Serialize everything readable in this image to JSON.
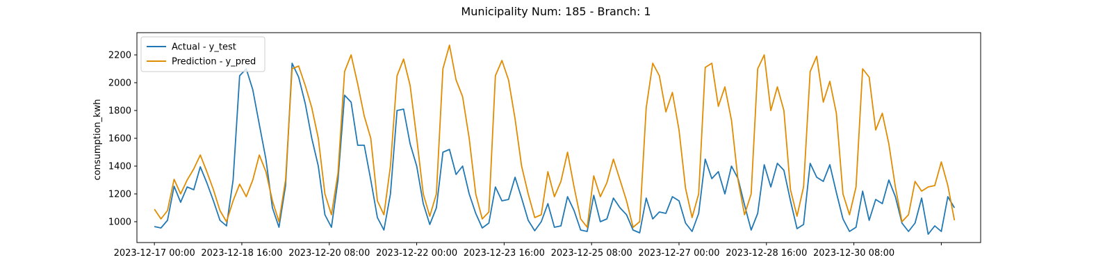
{
  "chart_data": {
    "type": "line",
    "title": "Municipality Num: 185 - Branch: 1",
    "xlabel": "",
    "ylabel": "consumption_kwh",
    "x_range": [
      "2023-12-17 00:00",
      "2024-01-01 06:00"
    ],
    "ylim": [
      850,
      2360
    ],
    "yticks": [
      1000,
      1200,
      1400,
      1600,
      1800,
      2000,
      2200
    ],
    "xticks": [
      {
        "label": "2023-12-17 00:00",
        "value": "2023-12-17 00:00"
      },
      {
        "label": "2023-12-18 16:00",
        "value": "2023-12-18 16:00"
      },
      {
        "label": "2023-12-20 08:00",
        "value": "2023-12-20 08:00"
      },
      {
        "label": "2023-12-22 00:00",
        "value": "2023-12-22 00:00"
      },
      {
        "label": "2023-12-23 16:00",
        "value": "2023-12-23 16:00"
      },
      {
        "label": "2023-12-25 08:00",
        "value": "2023-12-25 08:00"
      },
      {
        "label": "2023-12-27 00:00",
        "value": "2023-12-27 00:00"
      },
      {
        "label": "2023-12-28 16:00",
        "value": "2023-12-28 16:00"
      },
      {
        "label": "2023-12-30 08:00",
        "value": "2023-12-30 08:00"
      },
      {
        "label": "",
        "value": "2024-01-01 00:00"
      }
    ],
    "grid": false,
    "legend_position": "upper left",
    "series": [
      {
        "name": "Actual - y_test",
        "color": "#1f77b4",
        "points": [
          [
            "2023-12-17 00:00",
            965
          ],
          [
            "2023-12-17 03:00",
            955
          ],
          [
            "2023-12-17 06:00",
            1010
          ],
          [
            "2023-12-17 09:00",
            1255
          ],
          [
            "2023-12-17 12:00",
            1140
          ],
          [
            "2023-12-17 15:00",
            1250
          ],
          [
            "2023-12-17 18:00",
            1230
          ],
          [
            "2023-12-17 21:00",
            1395
          ],
          [
            "2023-12-18 00:00",
            1280
          ],
          [
            "2023-12-18 03:00",
            1150
          ],
          [
            "2023-12-18 06:00",
            1010
          ],
          [
            "2023-12-18 09:00",
            970
          ],
          [
            "2023-12-18 12:00",
            1300
          ],
          [
            "2023-12-18 15:00",
            2050
          ],
          [
            "2023-12-18 18:00",
            2100
          ],
          [
            "2023-12-18 21:00",
            1950
          ],
          [
            "2023-12-19 00:00",
            1700
          ],
          [
            "2023-12-19 03:00",
            1450
          ],
          [
            "2023-12-19 06:00",
            1100
          ],
          [
            "2023-12-19 09:00",
            960
          ],
          [
            "2023-12-19 12:00",
            1260
          ],
          [
            "2023-12-19 15:00",
            2140
          ],
          [
            "2023-12-19 18:00",
            2040
          ],
          [
            "2023-12-19 21:00",
            1850
          ],
          [
            "2023-12-20 00:00",
            1600
          ],
          [
            "2023-12-20 03:00",
            1400
          ],
          [
            "2023-12-20 06:00",
            1050
          ],
          [
            "2023-12-20 09:00",
            960
          ],
          [
            "2023-12-20 12:00",
            1300
          ],
          [
            "2023-12-20 15:00",
            1910
          ],
          [
            "2023-12-20 18:00",
            1860
          ],
          [
            "2023-12-20 21:00",
            1550
          ],
          [
            "2023-12-21 00:00",
            1550
          ],
          [
            "2023-12-21 03:00",
            1300
          ],
          [
            "2023-12-21 06:00",
            1030
          ],
          [
            "2023-12-21 09:00",
            940
          ],
          [
            "2023-12-21 12:00",
            1200
          ],
          [
            "2023-12-21 15:00",
            1800
          ],
          [
            "2023-12-21 18:00",
            1810
          ],
          [
            "2023-12-21 21:00",
            1560
          ],
          [
            "2023-12-22 00:00",
            1400
          ],
          [
            "2023-12-22 03:00",
            1130
          ],
          [
            "2023-12-22 06:00",
            980
          ],
          [
            "2023-12-22 09:00",
            1100
          ],
          [
            "2023-12-22 12:00",
            1500
          ],
          [
            "2023-12-22 15:00",
            1520
          ],
          [
            "2023-12-22 18:00",
            1340
          ],
          [
            "2023-12-22 21:00",
            1400
          ],
          [
            "2023-12-23 00:00",
            1200
          ],
          [
            "2023-12-23 03:00",
            1060
          ],
          [
            "2023-12-23 06:00",
            955
          ],
          [
            "2023-12-23 09:00",
            990
          ],
          [
            "2023-12-23 12:00",
            1250
          ],
          [
            "2023-12-23 15:00",
            1150
          ],
          [
            "2023-12-23 18:00",
            1160
          ],
          [
            "2023-12-23 21:00",
            1320
          ],
          [
            "2023-12-24 00:00",
            1170
          ],
          [
            "2023-12-24 03:00",
            1010
          ],
          [
            "2023-12-24 06:00",
            935
          ],
          [
            "2023-12-24 09:00",
            1000
          ],
          [
            "2023-12-24 12:00",
            1130
          ],
          [
            "2023-12-24 15:00",
            960
          ],
          [
            "2023-12-24 18:00",
            970
          ],
          [
            "2023-12-24 21:00",
            1180
          ],
          [
            "2023-12-25 00:00",
            1080
          ],
          [
            "2023-12-25 03:00",
            940
          ],
          [
            "2023-12-25 06:00",
            930
          ],
          [
            "2023-12-25 09:00",
            1190
          ],
          [
            "2023-12-25 12:00",
            1000
          ],
          [
            "2023-12-25 15:00",
            1020
          ],
          [
            "2023-12-25 18:00",
            1170
          ],
          [
            "2023-12-25 21:00",
            1100
          ],
          [
            "2023-12-26 00:00",
            1050
          ],
          [
            "2023-12-26 03:00",
            940
          ],
          [
            "2023-12-26 06:00",
            920
          ],
          [
            "2023-12-26 09:00",
            1170
          ],
          [
            "2023-12-26 12:00",
            1020
          ],
          [
            "2023-12-26 15:00",
            1070
          ],
          [
            "2023-12-26 18:00",
            1060
          ],
          [
            "2023-12-26 21:00",
            1180
          ],
          [
            "2023-12-27 00:00",
            1150
          ],
          [
            "2023-12-27 03:00",
            990
          ],
          [
            "2023-12-27 06:00",
            930
          ],
          [
            "2023-12-27 09:00",
            1060
          ],
          [
            "2023-12-27 12:00",
            1450
          ],
          [
            "2023-12-27 15:00",
            1310
          ],
          [
            "2023-12-27 18:00",
            1360
          ],
          [
            "2023-12-27 21:00",
            1200
          ],
          [
            "2023-12-28 00:00",
            1400
          ],
          [
            "2023-12-28 03:00",
            1310
          ],
          [
            "2023-12-28 06:00",
            1120
          ],
          [
            "2023-12-28 09:00",
            940
          ],
          [
            "2023-12-28 12:00",
            1060
          ],
          [
            "2023-12-28 15:00",
            1410
          ],
          [
            "2023-12-28 18:00",
            1250
          ],
          [
            "2023-12-28 21:00",
            1420
          ],
          [
            "2023-12-29 00:00",
            1370
          ],
          [
            "2023-12-29 03:00",
            1150
          ],
          [
            "2023-12-29 06:00",
            950
          ],
          [
            "2023-12-29 09:00",
            980
          ],
          [
            "2023-12-29 12:00",
            1420
          ],
          [
            "2023-12-29 15:00",
            1320
          ],
          [
            "2023-12-29 18:00",
            1290
          ],
          [
            "2023-12-29 21:00",
            1410
          ],
          [
            "2023-12-30 00:00",
            1210
          ],
          [
            "2023-12-30 03:00",
            1020
          ],
          [
            "2023-12-30 06:00",
            930
          ],
          [
            "2023-12-30 09:00",
            960
          ],
          [
            "2023-12-30 12:00",
            1220
          ],
          [
            "2023-12-30 15:00",
            1010
          ],
          [
            "2023-12-30 18:00",
            1160
          ],
          [
            "2023-12-30 21:00",
            1130
          ],
          [
            "2023-12-31 00:00",
            1300
          ],
          [
            "2023-12-31 03:00",
            1180
          ],
          [
            "2023-12-31 06:00",
            990
          ],
          [
            "2023-12-31 09:00",
            930
          ],
          [
            "2023-12-31 12:00",
            990
          ],
          [
            "2023-12-31 15:00",
            1170
          ],
          [
            "2023-12-31 18:00",
            910
          ],
          [
            "2023-12-31 21:00",
            970
          ],
          [
            "2024-01-01 00:00",
            930
          ],
          [
            "2024-01-01 03:00",
            1180
          ],
          [
            "2024-01-01 06:00",
            1100
          ]
        ]
      },
      {
        "name": "Prediction - y_pred",
        "color": "#e08b00",
        "points": [
          [
            "2023-12-17 00:00",
            1090
          ],
          [
            "2023-12-17 03:00",
            1020
          ],
          [
            "2023-12-17 06:00",
            1080
          ],
          [
            "2023-12-17 09:00",
            1305
          ],
          [
            "2023-12-17 12:00",
            1200
          ],
          [
            "2023-12-17 15:00",
            1300
          ],
          [
            "2023-12-17 18:00",
            1380
          ],
          [
            "2023-12-17 21:00",
            1480
          ],
          [
            "2023-12-18 00:00",
            1360
          ],
          [
            "2023-12-18 03:00",
            1230
          ],
          [
            "2023-12-18 06:00",
            1080
          ],
          [
            "2023-12-18 09:00",
            1000
          ],
          [
            "2023-12-18 12:00",
            1150
          ],
          [
            "2023-12-18 15:00",
            1270
          ],
          [
            "2023-12-18 18:00",
            1180
          ],
          [
            "2023-12-18 21:00",
            1300
          ],
          [
            "2023-12-19 00:00",
            1480
          ],
          [
            "2023-12-19 03:00",
            1360
          ],
          [
            "2023-12-19 06:00",
            1150
          ],
          [
            "2023-12-19 09:00",
            1000
          ],
          [
            "2023-12-19 12:00",
            1300
          ],
          [
            "2023-12-19 15:00",
            2100
          ],
          [
            "2023-12-19 18:00",
            2120
          ],
          [
            "2023-12-19 21:00",
            1980
          ],
          [
            "2023-12-20 00:00",
            1820
          ],
          [
            "2023-12-20 03:00",
            1600
          ],
          [
            "2023-12-20 06:00",
            1200
          ],
          [
            "2023-12-20 09:00",
            1050
          ],
          [
            "2023-12-20 12:00",
            1350
          ],
          [
            "2023-12-20 15:00",
            2080
          ],
          [
            "2023-12-20 18:00",
            2200
          ],
          [
            "2023-12-20 21:00",
            1990
          ],
          [
            "2023-12-21 00:00",
            1760
          ],
          [
            "2023-12-21 03:00",
            1600
          ],
          [
            "2023-12-21 06:00",
            1150
          ],
          [
            "2023-12-21 09:00",
            1050
          ],
          [
            "2023-12-21 12:00",
            1400
          ],
          [
            "2023-12-21 15:00",
            2050
          ],
          [
            "2023-12-21 18:00",
            2170
          ],
          [
            "2023-12-21 21:00",
            1980
          ],
          [
            "2023-12-22 00:00",
            1600
          ],
          [
            "2023-12-22 03:00",
            1200
          ],
          [
            "2023-12-22 06:00",
            1040
          ],
          [
            "2023-12-22 09:00",
            1200
          ],
          [
            "2023-12-22 12:00",
            2100
          ],
          [
            "2023-12-22 15:00",
            2270
          ],
          [
            "2023-12-22 18:00",
            2020
          ],
          [
            "2023-12-22 21:00",
            1900
          ],
          [
            "2023-12-23 00:00",
            1600
          ],
          [
            "2023-12-23 03:00",
            1200
          ],
          [
            "2023-12-23 06:00",
            1020
          ],
          [
            "2023-12-23 09:00",
            1070
          ],
          [
            "2023-12-23 12:00",
            2050
          ],
          [
            "2023-12-23 15:00",
            2160
          ],
          [
            "2023-12-23 18:00",
            2020
          ],
          [
            "2023-12-23 21:00",
            1740
          ],
          [
            "2023-12-24 00:00",
            1400
          ],
          [
            "2023-12-24 03:00",
            1200
          ],
          [
            "2023-12-24 06:00",
            1030
          ],
          [
            "2023-12-24 09:00",
            1050
          ],
          [
            "2023-12-24 12:00",
            1360
          ],
          [
            "2023-12-24 15:00",
            1180
          ],
          [
            "2023-12-24 18:00",
            1290
          ],
          [
            "2023-12-24 21:00",
            1500
          ],
          [
            "2023-12-25 00:00",
            1250
          ],
          [
            "2023-12-25 03:00",
            1020
          ],
          [
            "2023-12-25 06:00",
            960
          ],
          [
            "2023-12-25 09:00",
            1330
          ],
          [
            "2023-12-25 12:00",
            1180
          ],
          [
            "2023-12-25 15:00",
            1280
          ],
          [
            "2023-12-25 18:00",
            1450
          ],
          [
            "2023-12-25 21:00",
            1300
          ],
          [
            "2023-12-26 00:00",
            1150
          ],
          [
            "2023-12-26 03:00",
            960
          ],
          [
            "2023-12-26 06:00",
            1000
          ],
          [
            "2023-12-26 09:00",
            1820
          ],
          [
            "2023-12-26 12:00",
            2140
          ],
          [
            "2023-12-26 15:00",
            2050
          ],
          [
            "2023-12-26 18:00",
            1790
          ],
          [
            "2023-12-26 21:00",
            1930
          ],
          [
            "2023-12-27 00:00",
            1660
          ],
          [
            "2023-12-27 03:00",
            1240
          ],
          [
            "2023-12-27 06:00",
            1030
          ],
          [
            "2023-12-27 09:00",
            1200
          ],
          [
            "2023-12-27 12:00",
            2110
          ],
          [
            "2023-12-27 15:00",
            2140
          ],
          [
            "2023-12-27 18:00",
            1830
          ],
          [
            "2023-12-27 21:00",
            1970
          ],
          [
            "2023-12-28 00:00",
            1730
          ],
          [
            "2023-12-28 03:00",
            1300
          ],
          [
            "2023-12-28 06:00",
            1050
          ],
          [
            "2023-12-28 09:00",
            1200
          ],
          [
            "2023-12-28 12:00",
            2100
          ],
          [
            "2023-12-28 15:00",
            2200
          ],
          [
            "2023-12-28 18:00",
            1800
          ],
          [
            "2023-12-28 21:00",
            1970
          ],
          [
            "2023-12-29 00:00",
            1800
          ],
          [
            "2023-12-29 03:00",
            1230
          ],
          [
            "2023-12-29 06:00",
            1040
          ],
          [
            "2023-12-29 09:00",
            1250
          ],
          [
            "2023-12-29 12:00",
            2080
          ],
          [
            "2023-12-29 15:00",
            2190
          ],
          [
            "2023-12-29 18:00",
            1860
          ],
          [
            "2023-12-29 21:00",
            2010
          ],
          [
            "2023-12-30 00:00",
            1780
          ],
          [
            "2023-12-30 03:00",
            1200
          ],
          [
            "2023-12-30 06:00",
            1050
          ],
          [
            "2023-12-30 09:00",
            1250
          ],
          [
            "2023-12-30 12:00",
            2100
          ],
          [
            "2023-12-30 15:00",
            2040
          ],
          [
            "2023-12-30 18:00",
            1660
          ],
          [
            "2023-12-30 21:00",
            1780
          ],
          [
            "2023-12-31 00:00",
            1560
          ],
          [
            "2023-12-31 03:00",
            1250
          ],
          [
            "2023-12-31 06:00",
            1000
          ],
          [
            "2023-12-31 09:00",
            1050
          ],
          [
            "2023-12-31 12:00",
            1290
          ],
          [
            "2023-12-31 15:00",
            1220
          ],
          [
            "2023-12-31 18:00",
            1250
          ],
          [
            "2023-12-31 21:00",
            1260
          ],
          [
            "2024-01-01 00:00",
            1430
          ],
          [
            "2024-01-01 03:00",
            1260
          ],
          [
            "2024-01-01 06:00",
            1010
          ]
        ]
      }
    ]
  }
}
